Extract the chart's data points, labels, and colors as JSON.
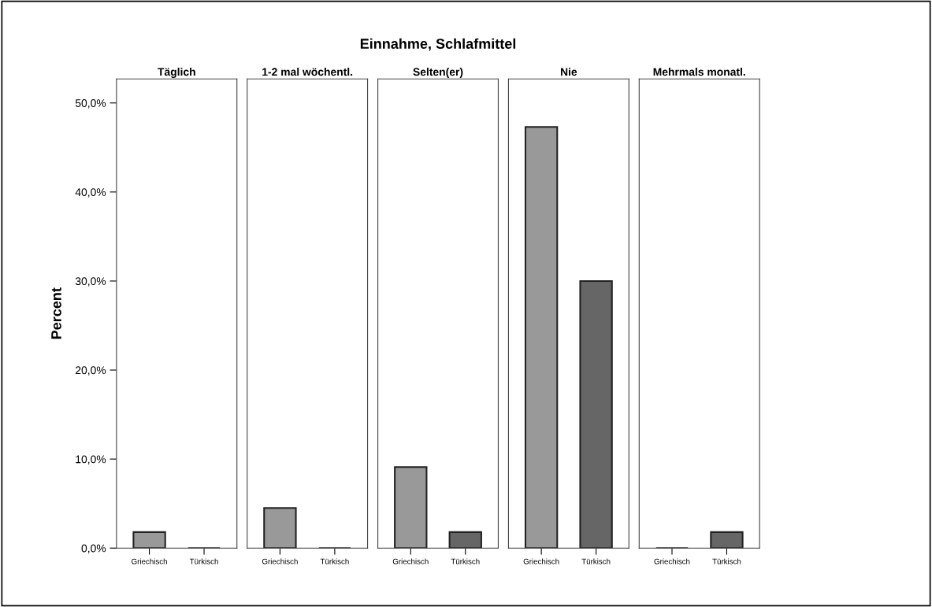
{
  "chart_data": [
    {
      "type": "bar",
      "title": "Täglich",
      "annotations": [
        "Einnahme, Schlafmittel"
      ],
      "ylabel": "Percent",
      "categories": [
        "Griechisch",
        "Türkisch"
      ],
      "values": [
        1.8,
        0
      ],
      "colors": [
        "#999999",
        "#666666"
      ],
      "ylim": [
        0,
        52.7
      ],
      "yticks": [
        {
          "value": 0,
          "label": "0,0%"
        },
        {
          "value": 10,
          "label": "10,0%"
        },
        {
          "value": 20,
          "label": "20,0%"
        },
        {
          "value": 30,
          "label": "30,0%"
        },
        {
          "value": 40,
          "label": "40,0%"
        },
        {
          "value": 50,
          "label": "50,0%"
        }
      ]
    },
    {
      "type": "bar",
      "title": "1-2 mal wöchentl.",
      "categories": [
        "Griechisch",
        "Türkisch"
      ],
      "values": [
        4.5,
        0
      ],
      "colors": [
        "#999999",
        "#666666"
      ],
      "ylim": [
        0,
        52.7
      ],
      "tick_labels": "x"
    },
    {
      "type": "bar",
      "title": "Selten(er)",
      "categories": [
        "Griechisch",
        "Türkisch"
      ],
      "values": [
        9.1,
        1.8
      ],
      "colors": [
        "#999999",
        "#666666"
      ],
      "ylim": [
        0,
        52.7
      ],
      "tick_labels": "x"
    },
    {
      "type": "bar",
      "title": "Nie",
      "categories": [
        "Griechisch",
        "Türkisch"
      ],
      "values": [
        47.3,
        30.0
      ],
      "colors": [
        "#999999",
        "#666666"
      ],
      "ylim": [
        0,
        52.7
      ],
      "tick_labels": "x"
    },
    {
      "type": "bar",
      "title": "Mehrmals monatl.",
      "categories": [
        "Griechisch",
        "Türkisch"
      ],
      "values": [
        0,
        1.8
      ],
      "colors": [
        "#999999",
        "#666666"
      ],
      "ylim": [
        0,
        52.7
      ],
      "tick_labels": "x"
    }
  ]
}
